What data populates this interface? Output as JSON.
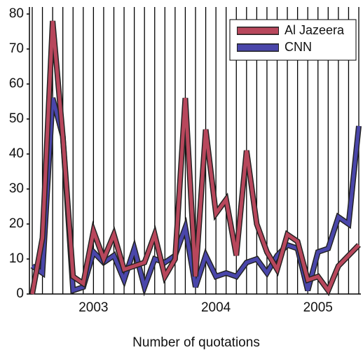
{
  "chart_data": {
    "type": "line",
    "x_label": "Number of quotations",
    "categories": [
      null,
      null,
      null,
      null,
      null,
      null,
      "2003",
      null,
      null,
      null,
      null,
      null,
      null,
      null,
      null,
      null,
      null,
      null,
      "2004",
      null,
      null,
      null,
      null,
      null,
      null,
      null,
      null,
      null,
      "2005",
      null,
      null,
      null,
      null
    ],
    "series": [
      {
        "name": "Al Jazeera",
        "color": "#b8475c",
        "values": [
          0,
          16,
          78,
          45,
          5,
          3,
          18,
          10,
          17,
          7,
          8,
          9,
          17,
          5,
          10,
          56,
          5,
          47,
          23,
          27,
          11,
          41,
          20,
          12,
          7,
          17,
          15,
          4,
          5,
          1,
          8,
          11,
          14
        ]
      },
      {
        "name": "CNN",
        "color": "#4a46aa",
        "values": [
          8,
          6,
          56,
          45,
          1,
          2,
          12,
          9,
          11,
          4,
          13,
          2,
          10,
          9,
          11,
          19,
          2,
          11,
          5,
          6,
          5,
          9,
          10,
          6,
          11,
          14,
          13,
          1,
          12,
          13,
          22,
          20,
          48
        ]
      }
    ],
    "ylim": [
      0,
      80
    ],
    "yticks": [
      0,
      10,
      20,
      30,
      40,
      50,
      60,
      70,
      80
    ],
    "grid": "x",
    "legend": "top-right"
  }
}
